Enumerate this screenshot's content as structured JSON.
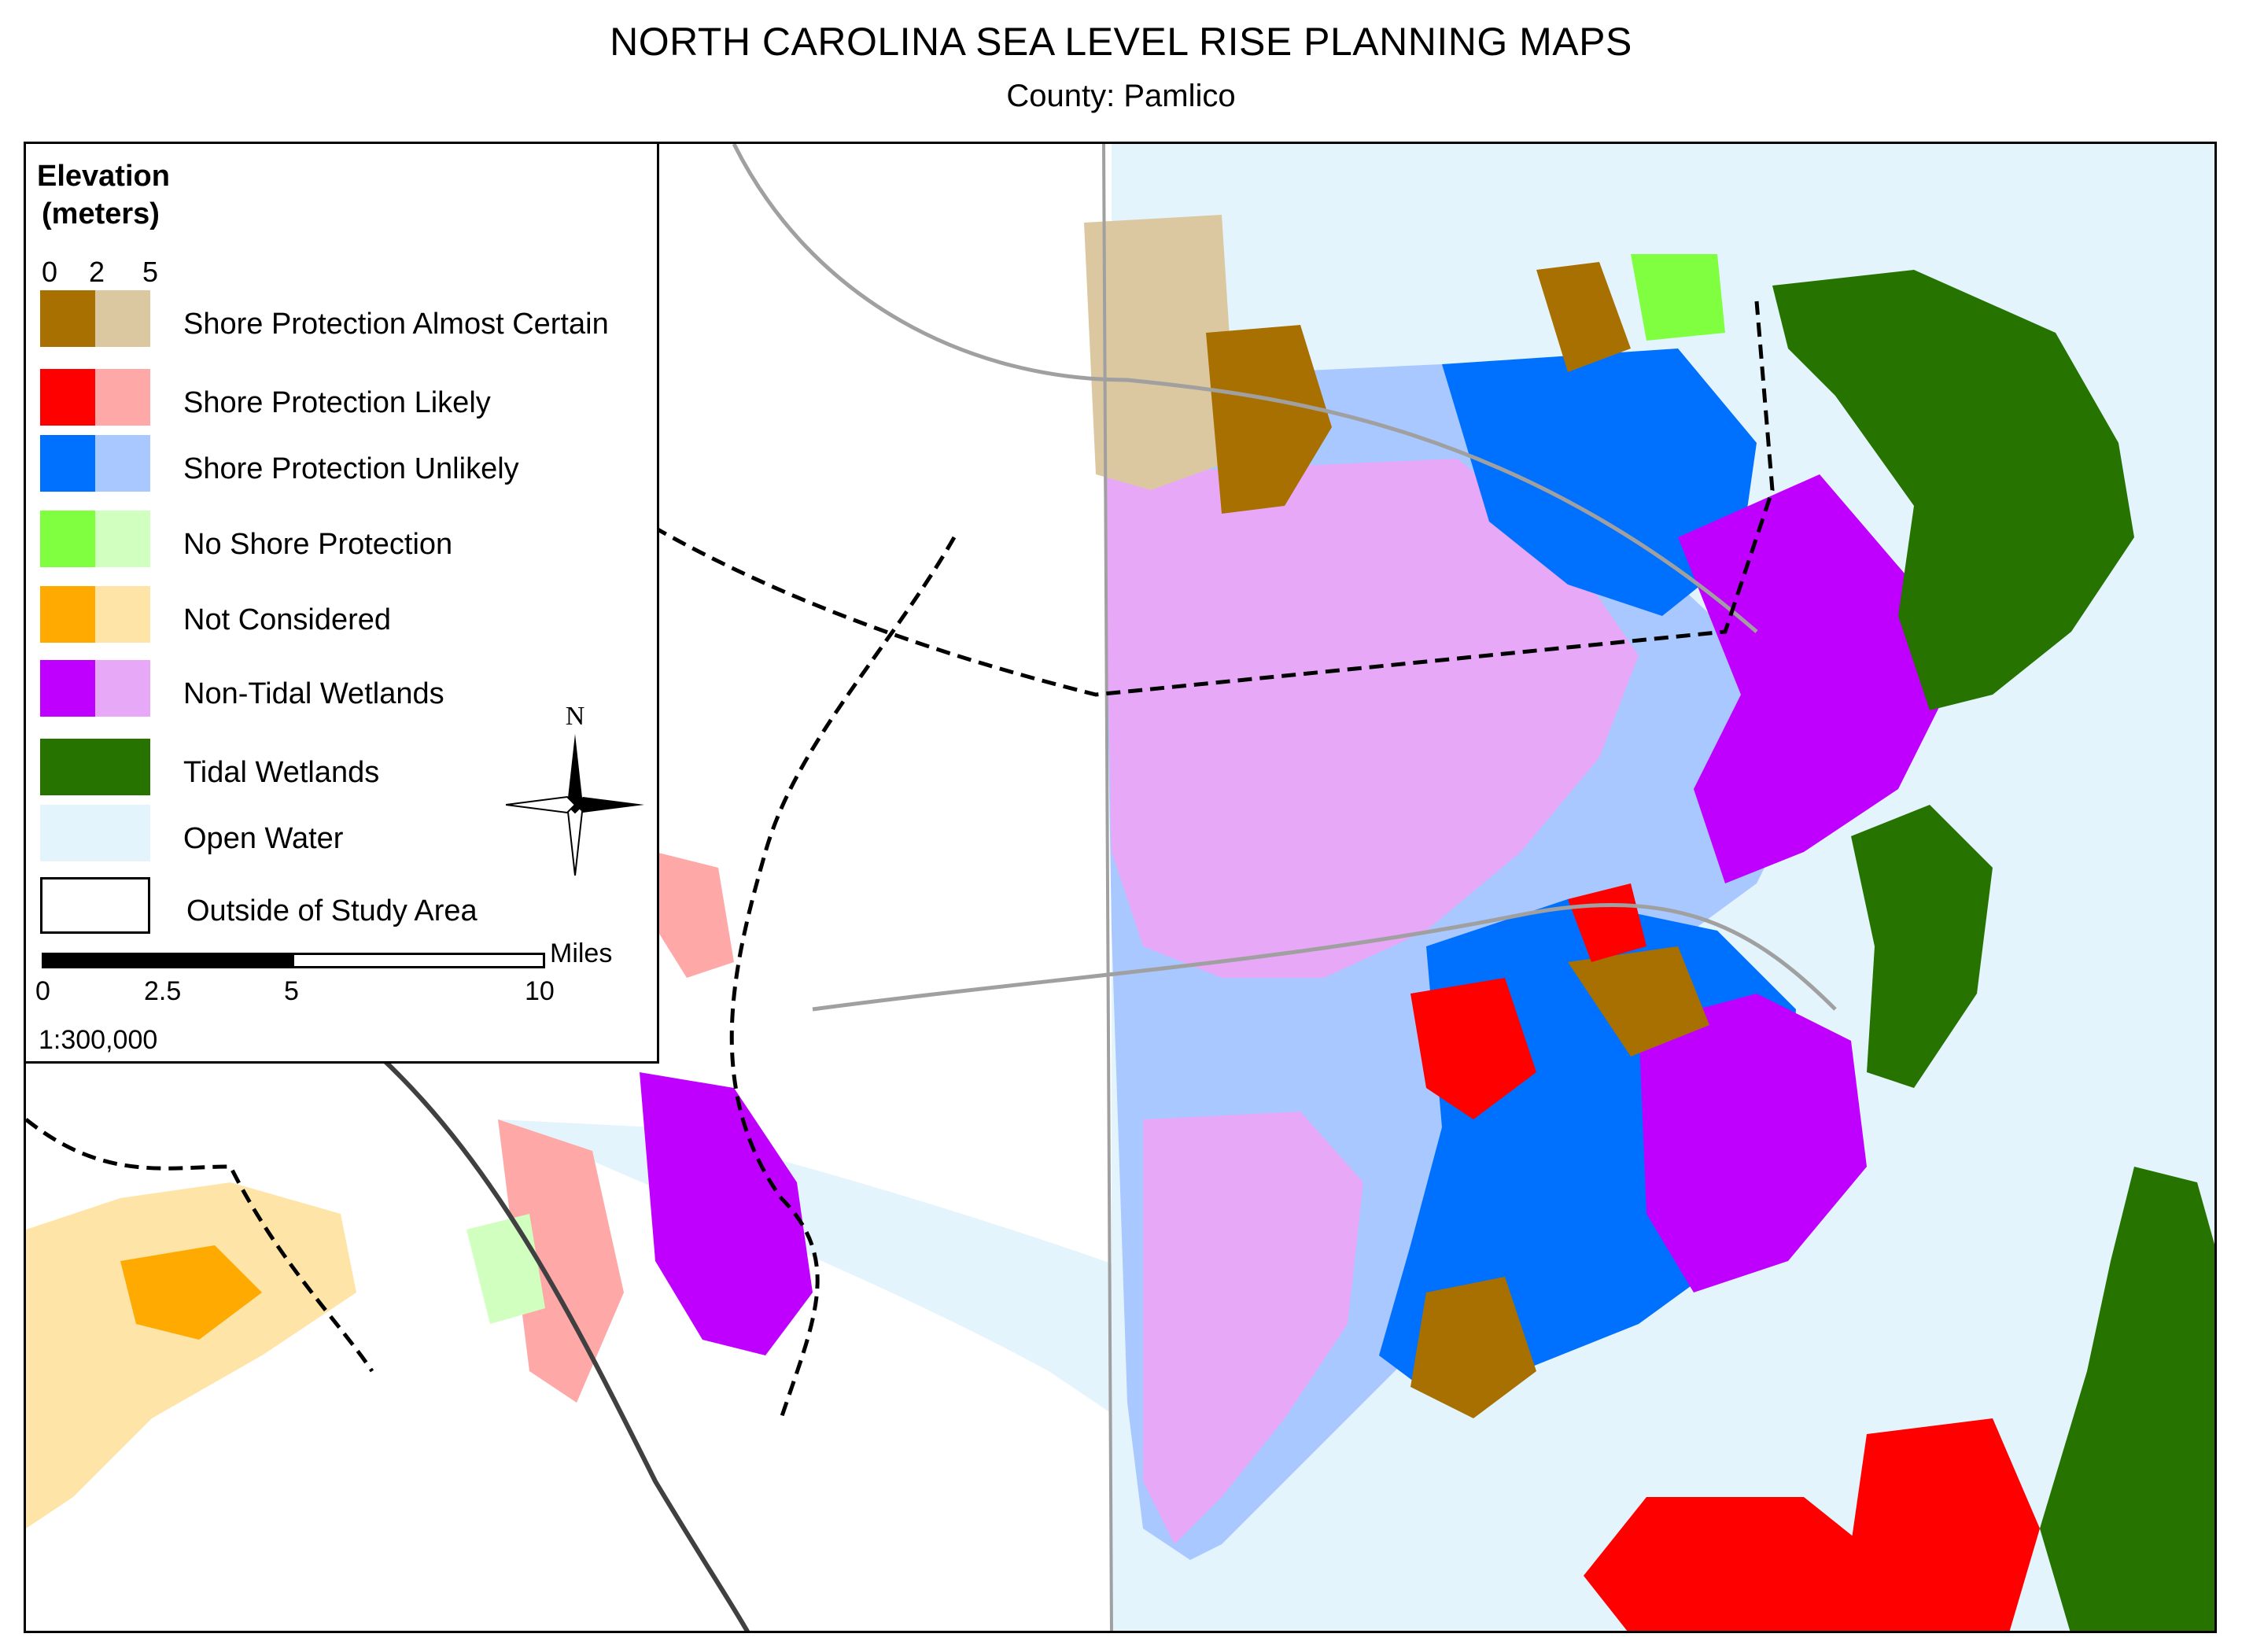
{
  "title": "NORTH CAROLINA SEA LEVEL RISE PLANNING MAPS",
  "subtitle": "County:  Pamlico",
  "legend": {
    "heading_line1": "Elevation",
    "heading_line2": "(meters)",
    "elevation_ticks": [
      "0",
      "2",
      "5"
    ],
    "items": [
      {
        "label": "Shore Protection Almost Certain",
        "low_color": "#a87000",
        "high_color": "#dcc8a0"
      },
      {
        "label": "Shore Protection Likely",
        "low_color": "#ff0000",
        "high_color": "#ffa8a8"
      },
      {
        "label": "Shore Protection Unlikely",
        "low_color": "#0070ff",
        "high_color": "#a8c8ff"
      },
      {
        "label": "No Shore Protection",
        "low_color": "#80ff40",
        "high_color": "#d0ffc0"
      },
      {
        "label": "Not Considered",
        "low_color": "#ffaa00",
        "high_color": "#ffe4a8"
      },
      {
        "label": "Non-Tidal Wetlands",
        "low_color": "#c000ff",
        "high_color": "#e8a8f8"
      },
      {
        "label": "Tidal Wetlands",
        "low_color": "#267300",
        "high_color": "#267300"
      },
      {
        "label": "Open Water",
        "low_color": "#e4f4fc",
        "high_color": "#e4f4fc"
      },
      {
        "label": "Outside of Study Area",
        "low_color": "#ffffff",
        "high_color": "#ffffff"
      }
    ],
    "scale": {
      "ticks": [
        "0",
        "2.5",
        "5",
        "10"
      ],
      "unit": "Miles",
      "ratio": "1:300,000"
    },
    "north_label": "N"
  }
}
